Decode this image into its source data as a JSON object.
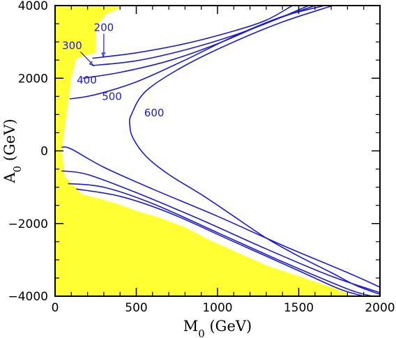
{
  "chart_data": {
    "type": "line",
    "title": "",
    "xlabel": {
      "base": "M",
      "sub": "0",
      "unit": " (GeV)"
    },
    "ylabel": {
      "base": "A",
      "sub": "0",
      "unit": " (GeV)"
    },
    "xlim": [
      0,
      2000
    ],
    "ylim": [
      -4000,
      4000
    ],
    "xticks": [
      0,
      500,
      1000,
      1500,
      2000
    ],
    "xtick_labels": [
      "0",
      "500",
      "1000",
      "1500",
      "2000"
    ],
    "yticks": [
      -4000,
      -2000,
      0,
      2000,
      4000
    ],
    "ytick_labels": [
      "−4000",
      "−2000",
      "0",
      "2000",
      "4000"
    ],
    "grid": false,
    "colors": {
      "excluded_region": "#ffff33",
      "contour": "#1a1ad6",
      "frame": "#000000"
    },
    "excluded_region_boundary": [
      [
        0,
        4000
      ],
      [
        430,
        4000
      ],
      [
        310,
        3750
      ],
      [
        260,
        3450
      ],
      [
        250,
        3200
      ],
      [
        250,
        2700
      ],
      [
        130,
        2550
      ],
      [
        100,
        2000
      ],
      [
        70,
        1000
      ],
      [
        40,
        0
      ],
      [
        60,
        -700
      ],
      [
        100,
        -900
      ],
      [
        170,
        -1200
      ],
      [
        260,
        -1300
      ],
      [
        380,
        -1450
      ],
      [
        500,
        -1650
      ],
      [
        650,
        -1850
      ],
      [
        800,
        -2100
      ],
      [
        950,
        -2450
      ],
      [
        1100,
        -2750
      ],
      [
        1300,
        -3150
      ],
      [
        1500,
        -3450
      ],
      [
        1700,
        -3750
      ],
      [
        1850,
        -4000
      ],
      [
        0,
        -4000
      ]
    ],
    "series": [
      {
        "name": "200",
        "points": [
          [
            230,
            2550
          ],
          [
            500,
            2700
          ],
          [
            800,
            2950
          ],
          [
            1100,
            3300
          ],
          [
            1300,
            3600
          ],
          [
            1460,
            4000
          ]
        ]
      },
      {
        "name": "300",
        "points": [
          [
            230,
            2350
          ],
          [
            500,
            2480
          ],
          [
            800,
            2780
          ],
          [
            1100,
            3180
          ],
          [
            1350,
            3600
          ],
          [
            1560,
            4000
          ]
        ]
      },
      {
        "name": "400",
        "points": [
          [
            170,
            2000
          ],
          [
            400,
            2160
          ],
          [
            700,
            2480
          ],
          [
            1000,
            2950
          ],
          [
            1300,
            3520
          ],
          [
            1600,
            4000
          ]
        ]
      },
      {
        "name": "500",
        "points": [
          [
            90,
            1430
          ],
          [
            250,
            1550
          ],
          [
            500,
            1900
          ],
          [
            800,
            2500
          ],
          [
            1100,
            3150
          ],
          [
            1400,
            3700
          ],
          [
            1660,
            4000
          ]
        ]
      },
      {
        "name": "600",
        "points": [
          [
            1710,
            4000
          ],
          [
            1400,
            3550
          ],
          [
            1100,
            3000
          ],
          [
            800,
            2350
          ],
          [
            560,
            1650
          ],
          [
            470,
            1000
          ],
          [
            460,
            700
          ],
          [
            480,
            350
          ],
          [
            560,
            -150
          ],
          [
            700,
            -650
          ],
          [
            900,
            -1200
          ],
          [
            1100,
            -1800
          ],
          [
            1300,
            -2400
          ],
          [
            1500,
            -2900
          ],
          [
            1700,
            -3350
          ],
          [
            1850,
            -3700
          ],
          [
            2000,
            -3950
          ]
        ]
      },
      {
        "name": "",
        "points": [
          [
            40,
            100
          ],
          [
            100,
            50
          ],
          [
            300,
            -450
          ],
          [
            600,
            -1050
          ],
          [
            1000,
            -1800
          ],
          [
            1400,
            -2600
          ],
          [
            1800,
            -3350
          ],
          [
            2000,
            -3750
          ]
        ]
      },
      {
        "name": "",
        "points": [
          [
            40,
            -550
          ],
          [
            200,
            -650
          ],
          [
            500,
            -1150
          ],
          [
            900,
            -1900
          ],
          [
            1300,
            -2700
          ],
          [
            1700,
            -3450
          ],
          [
            2000,
            -3900
          ]
        ]
      },
      {
        "name": "",
        "points": [
          [
            80,
            -900
          ],
          [
            300,
            -1000
          ],
          [
            600,
            -1450
          ],
          [
            1000,
            -2250
          ],
          [
            1400,
            -3050
          ],
          [
            1800,
            -3800
          ],
          [
            1950,
            -4000
          ]
        ]
      },
      {
        "name": "",
        "points": [
          [
            130,
            -1050
          ],
          [
            400,
            -1250
          ],
          [
            700,
            -1700
          ],
          [
            1100,
            -2500
          ],
          [
            1500,
            -3300
          ],
          [
            1750,
            -3800
          ],
          [
            1900,
            -4000
          ]
        ]
      }
    ],
    "annotations": [
      {
        "text": "200",
        "x": 300,
        "y": 3300,
        "arrow_to": [
          300,
          2570
        ]
      },
      {
        "text": "300",
        "x": 105,
        "y": 2800,
        "arrow_to": [
          240,
          2340
        ]
      },
      {
        "text": "400",
        "x": 195,
        "y": 1850
      },
      {
        "text": "500",
        "x": 350,
        "y": 1400
      },
      {
        "text": "600",
        "x": 610,
        "y": 950
      }
    ]
  }
}
